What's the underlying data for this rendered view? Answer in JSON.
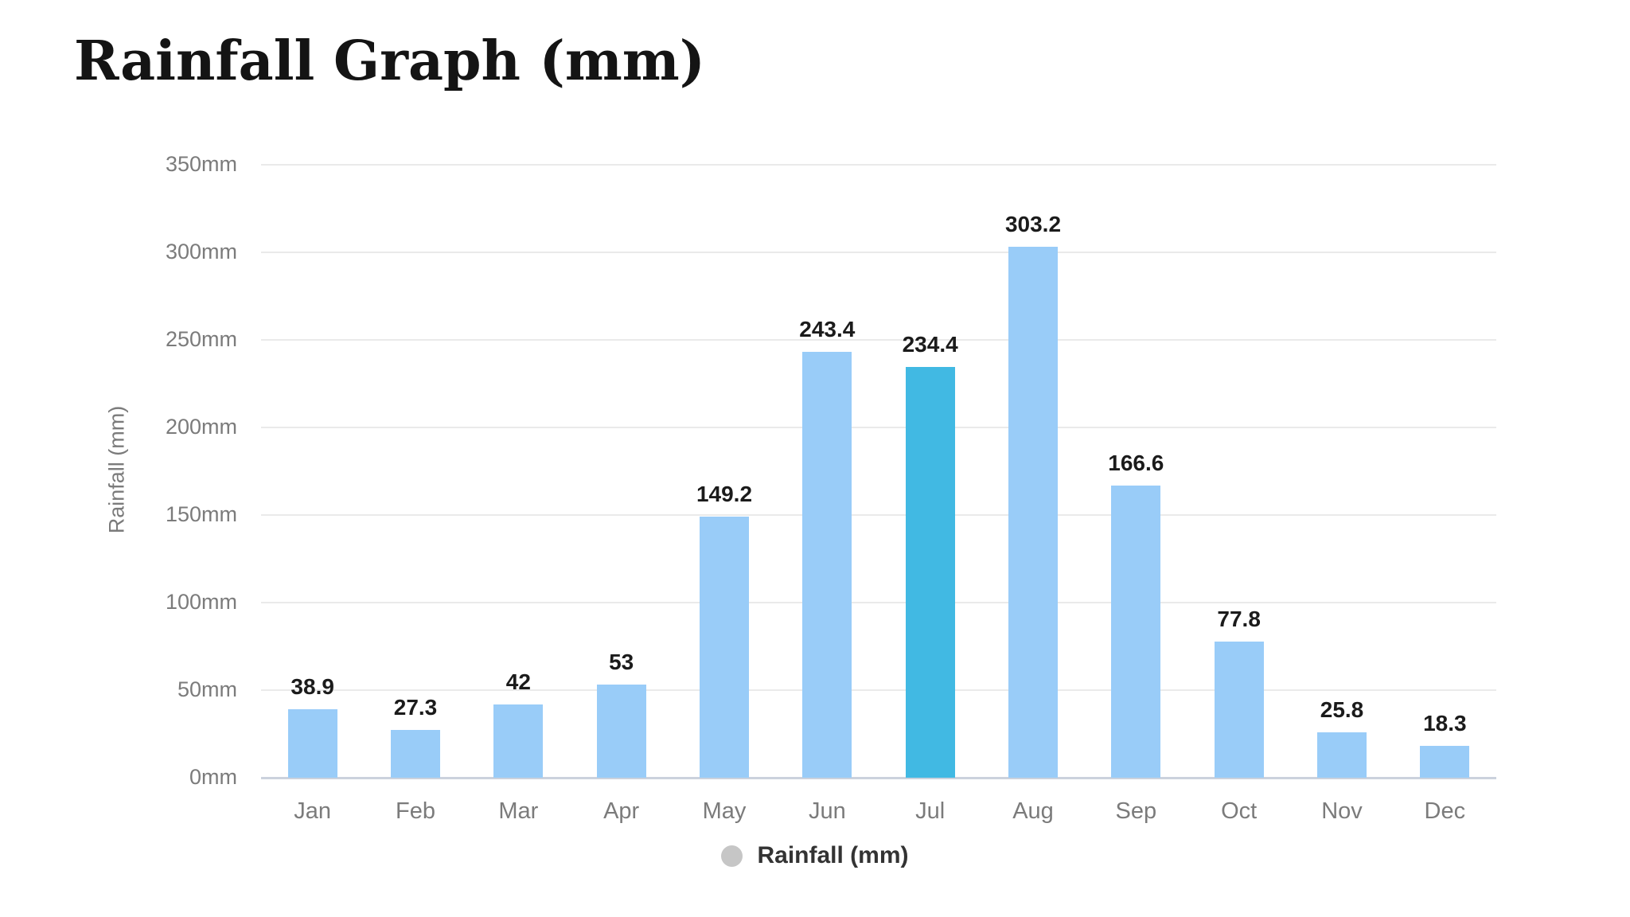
{
  "header": {
    "title": "Rainfall Graph (mm)"
  },
  "legend": {
    "label": "Rainfall (mm)",
    "marker_color": "#c6c6c6",
    "position": "bottom"
  },
  "chart_data": {
    "type": "bar",
    "title": "Rainfall Graph (mm)",
    "categories": [
      "Jan",
      "Feb",
      "Mar",
      "Apr",
      "May",
      "Jun",
      "Jul",
      "Aug",
      "Sep",
      "Oct",
      "Nov",
      "Dec"
    ],
    "values": [
      38.9,
      27.3,
      42,
      53,
      149.2,
      243.4,
      234.4,
      303.2,
      166.6,
      77.8,
      25.8,
      18.3
    ],
    "value_labels": [
      "38.9",
      "27.3",
      "42",
      "53",
      "149.2",
      "243.4",
      "234.4",
      "303.2",
      "166.6",
      "77.8",
      "25.8",
      "18.3"
    ],
    "xlabel": "",
    "ylabel": "Rainfall (mm)",
    "ylim": [
      0,
      350
    ],
    "yticks": [
      0,
      50,
      100,
      150,
      200,
      250,
      300,
      350
    ],
    "ytick_labels": [
      "0mm",
      "50mm",
      "100mm",
      "150mm",
      "200mm",
      "250mm",
      "300mm",
      "350mm"
    ],
    "grid": true,
    "legend_entries": [
      "Rainfall (mm)"
    ],
    "highlighted_index": 6,
    "colors": {
      "bar": "#99ccf8",
      "bar_highlight": "#41b9e3",
      "gridline": "#eaeaea",
      "baseline": "#ccd2dd",
      "tick_label": "#7b7b7b",
      "value_label": "#1b1b1b"
    }
  }
}
